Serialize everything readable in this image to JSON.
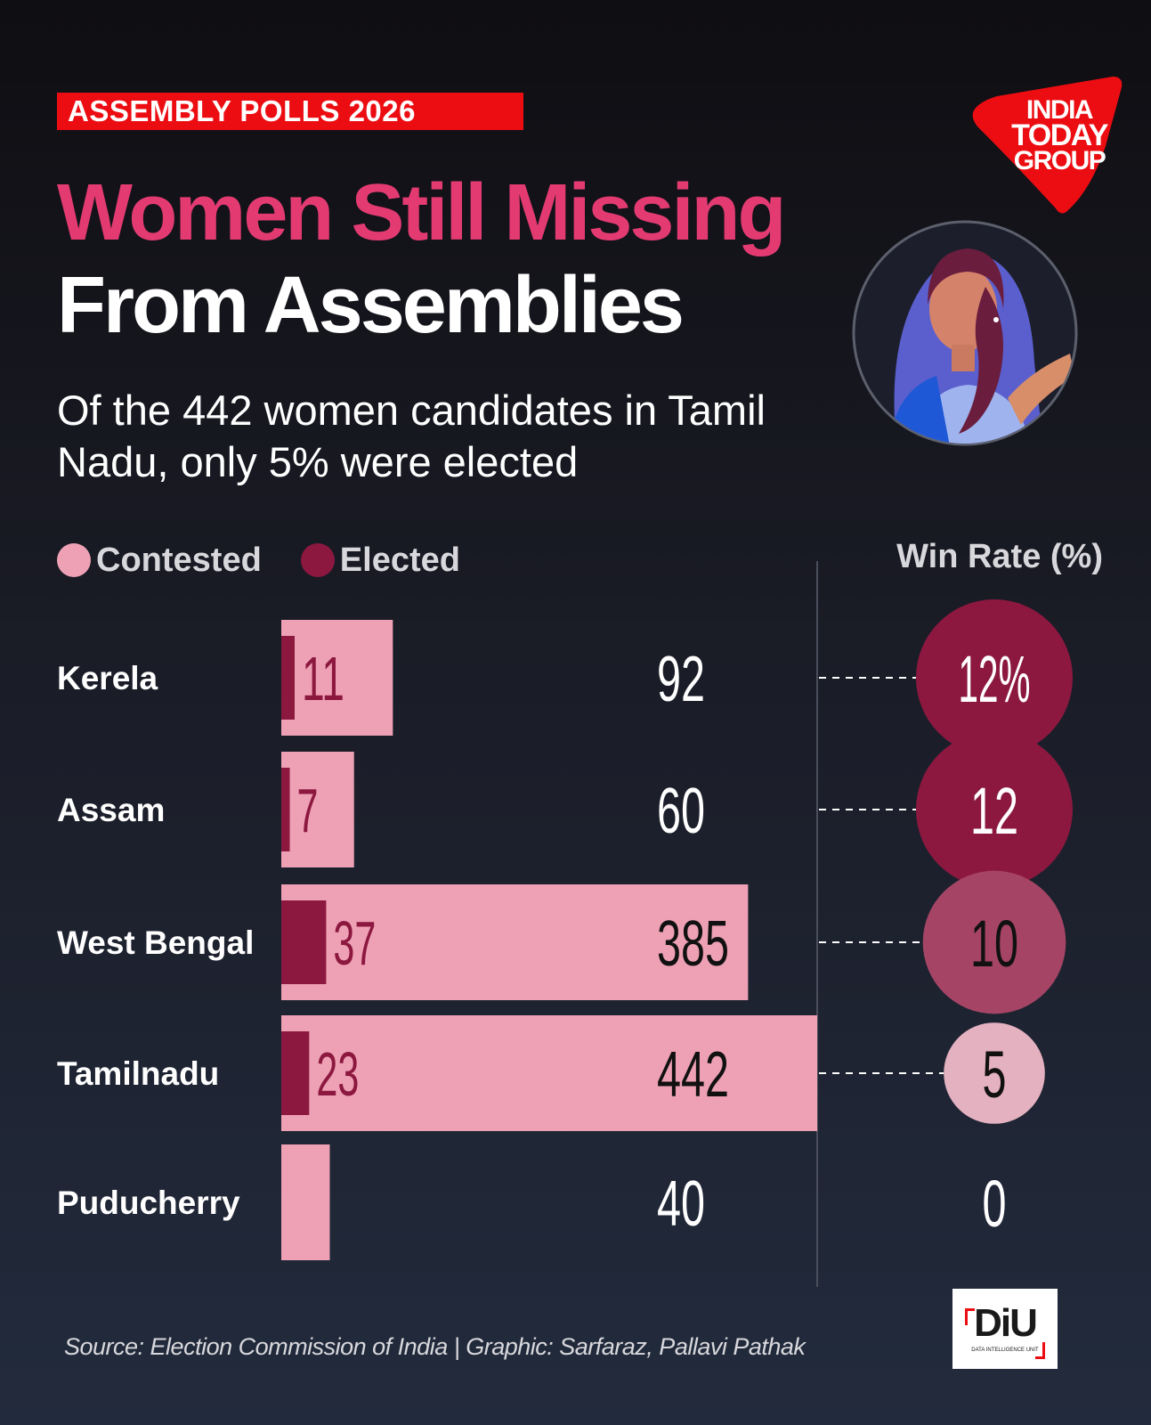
{
  "header": {
    "tag": "ASSEMBLY POLLS 2026",
    "title_line1": "Women Still Missing",
    "title_line2": "From Assemblies",
    "subtitle": "Of the 442 women candidates in Tamil Nadu, only 5% were elected"
  },
  "logo": {
    "line1": "INDIA",
    "line2": "TODAY",
    "line3": "GROUP"
  },
  "legend": {
    "contested": "Contested",
    "elected": "Elected"
  },
  "winrate_header": "Win Rate (%)",
  "colors": {
    "contested": "#eea1b5",
    "elected": "#8c1840",
    "accent": "#e33a72",
    "tag": "#ec0d12"
  },
  "chart_data": {
    "type": "bar",
    "categories": [
      "Kerela",
      "Assam",
      "West Bengal",
      "Tamilnadu",
      "Puducherry"
    ],
    "series": [
      {
        "name": "Contested",
        "values": [
          92,
          60,
          385,
          442,
          40
        ]
      },
      {
        "name": "Elected",
        "values": [
          11,
          7,
          37,
          23,
          0
        ]
      }
    ],
    "win_rate": [
      12,
      12,
      10,
      5,
      0
    ],
    "win_rate_labels": [
      "12%",
      "12",
      "10",
      "5",
      "0"
    ],
    "elected_labels": [
      "11",
      "7",
      "37",
      "23",
      ""
    ],
    "contested_labels": [
      "92",
      "60",
      "385",
      "442",
      "40"
    ],
    "legend_position": "top-left",
    "grid": false
  },
  "footer": {
    "source": "Source: Election Commission of India | Graphic:  Sarfaraz, Pallavi Pathak",
    "diu_text": "DiU",
    "diu_sub": "DATA INTELLIGENCE UNIT"
  }
}
